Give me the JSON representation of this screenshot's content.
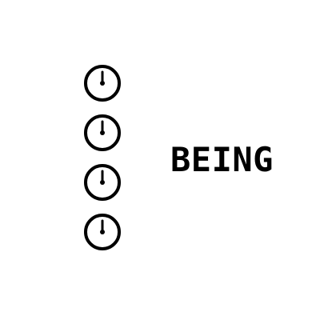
{
  "word": "BEING",
  "icons": [
    {
      "name": "stopwatch-icon"
    },
    {
      "name": "stopwatch-icon"
    },
    {
      "name": "stopwatch-icon"
    },
    {
      "name": "stopwatch-icon"
    }
  ],
  "colors": {
    "background": "#ffffff",
    "foreground": "#000000"
  }
}
